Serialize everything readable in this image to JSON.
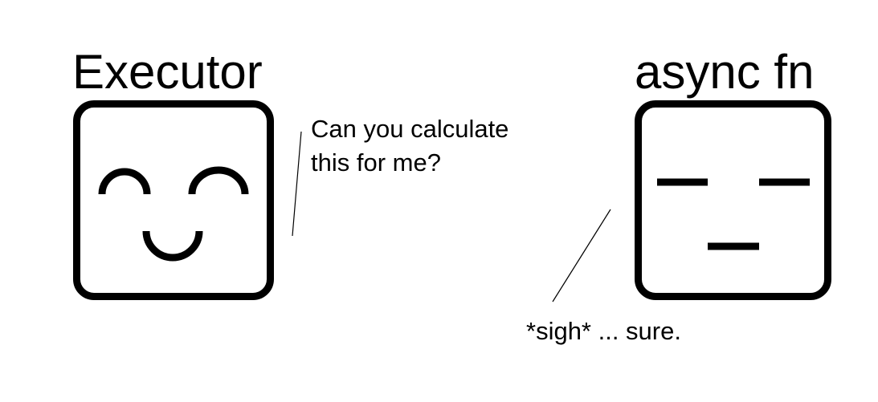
{
  "characters": {
    "executor": {
      "name": "Executor",
      "speech_lines": [
        "Can you calculate",
        "this for me?"
      ]
    },
    "async_fn": {
      "name": "async fn",
      "speech": "*sigh* ... sure."
    }
  },
  "colors": {
    "ink": "#000000",
    "background": "#ffffff"
  }
}
